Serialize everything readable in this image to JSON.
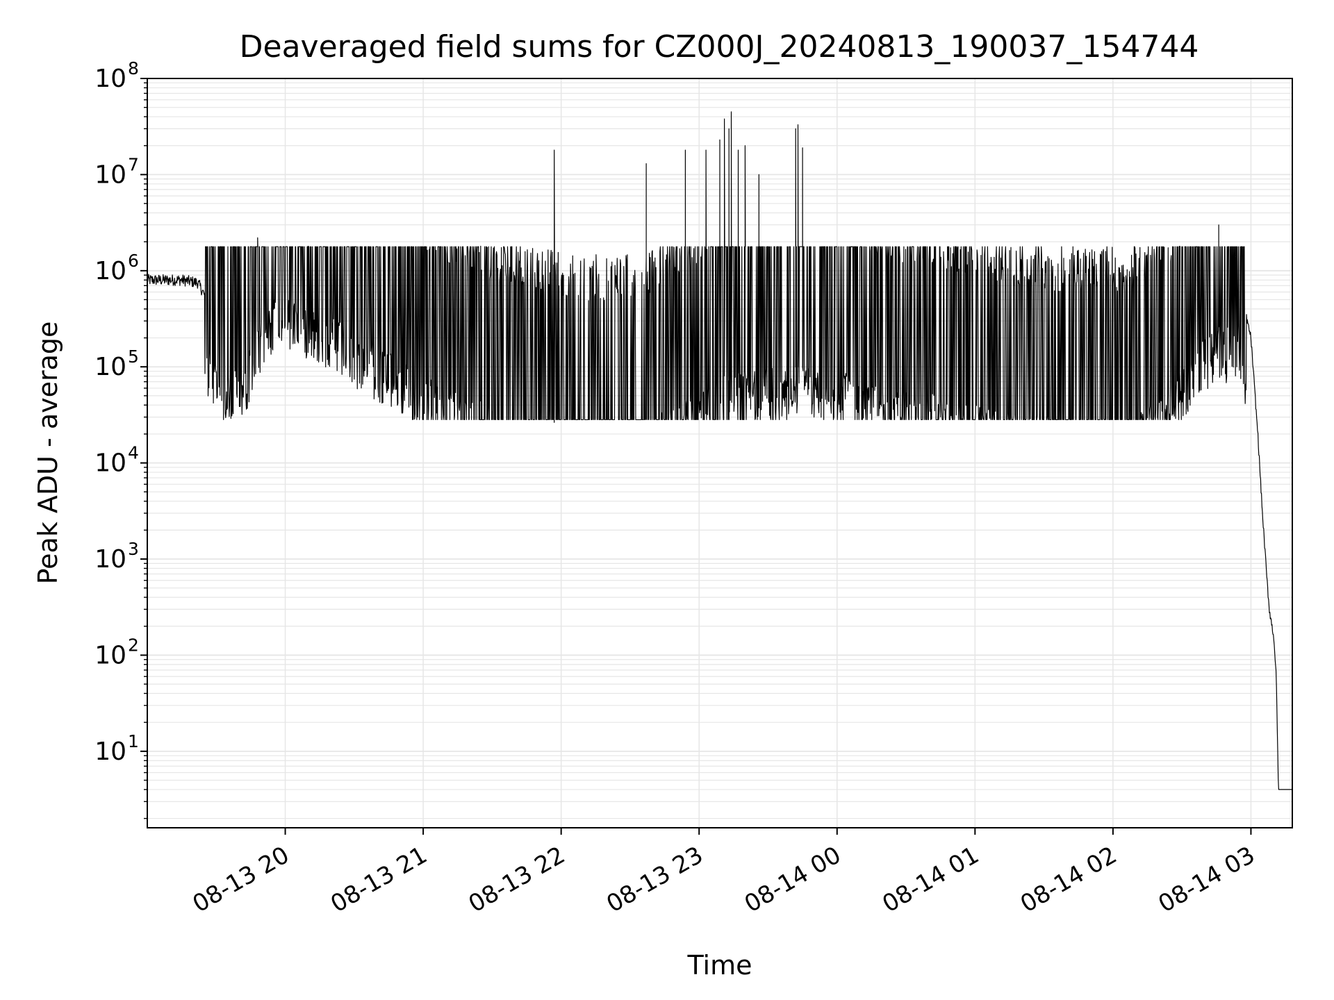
{
  "chart_data": {
    "type": "line",
    "title": "Deaveraged field sums for CZ000J_20240813_190037_154744",
    "xlabel": "Time",
    "ylabel": "Peak ADU - average",
    "yscale": "log",
    "ylim": [
      1.6,
      100000000
    ],
    "xlim": [
      "2024-08-13 19:00",
      "2024-08-14 03:18"
    ],
    "grid": true,
    "x_ticks": [
      "08-13 20",
      "08-13 21",
      "08-13 22",
      "08-13 23",
      "08-14 00",
      "08-14 01",
      "08-14 02",
      "08-14 03"
    ],
    "y_ticks": [
      {
        "base": "10",
        "exp": "1"
      },
      {
        "base": "10",
        "exp": "2"
      },
      {
        "base": "10",
        "exp": "3"
      },
      {
        "base": "10",
        "exp": "4"
      },
      {
        "base": "10",
        "exp": "5"
      },
      {
        "base": "10",
        "exp": "6"
      },
      {
        "base": "10",
        "exp": "7"
      },
      {
        "base": "10",
        "exp": "8"
      }
    ],
    "colors": {
      "line": "#000000",
      "grid": "#e6e6e6",
      "axes": "#000000"
    },
    "series": [
      {
        "x": [
          "2024-08-13 19:00",
          "2024-08-13 19:15",
          "2024-08-13 19:22",
          "2024-08-13 19:35",
          "2024-08-13 19:45",
          "2024-08-13 19:55",
          "2024-08-13 20:10",
          "2024-08-13 20:30",
          "2024-08-13 20:50",
          "2024-08-13 21:10",
          "2024-08-13 21:30",
          "2024-08-13 21:50",
          "2024-08-13 22:10",
          "2024-08-13 22:30",
          "2024-08-13 22:50",
          "2024-08-13 23:10",
          "2024-08-13 23:30",
          "2024-08-13 23:50",
          "2024-08-14 00:10",
          "2024-08-14 00:30",
          "2024-08-14 00:50",
          "2024-08-14 01:10",
          "2024-08-14 01:30",
          "2024-08-14 01:50",
          "2024-08-14 02:10",
          "2024-08-14 02:25",
          "2024-08-14 02:35",
          "2024-08-14 02:45",
          "2024-08-14 02:55",
          "2024-08-14 03:00",
          "2024-08-14 03:03",
          "2024-08-14 03:05",
          "2024-08-14 03:07",
          "2024-08-14 03:08",
          "2024-08-14 03:10",
          "2024-08-14 03:11",
          "2024-08-14 03:12",
          "2024-08-14 03:13",
          "2024-08-14 03:18"
        ],
        "values": [
          800000,
          800000,
          750000,
          200000,
          400000,
          1500000,
          1200000,
          600000,
          300000,
          150000,
          100000,
          70000,
          60000,
          60000,
          100000,
          200000,
          250000,
          250000,
          200000,
          150000,
          120000,
          90000,
          80000,
          70000,
          80000,
          150000,
          400000,
          650000,
          700000,
          200000,
          20000,
          3000,
          600,
          300,
          150,
          60,
          4,
          4,
          4
        ]
      }
    ],
    "spikes": [
      {
        "x": "2024-08-13 19:48",
        "y": 2200000
      },
      {
        "x": "2024-08-13 20:10",
        "y": 1800000
      },
      {
        "x": "2024-08-13 21:25",
        "y": 1800000
      },
      {
        "x": "2024-08-13 21:57",
        "y": 18000000
      },
      {
        "x": "2024-08-13 22:37",
        "y": 13000000
      },
      {
        "x": "2024-08-13 22:54",
        "y": 18000000
      },
      {
        "x": "2024-08-13 23:03",
        "y": 18000000
      },
      {
        "x": "2024-08-13 23:09",
        "y": 23000000
      },
      {
        "x": "2024-08-13 23:11",
        "y": 38000000
      },
      {
        "x": "2024-08-13 23:13",
        "y": 30000000
      },
      {
        "x": "2024-08-13 23:14",
        "y": 45000000
      },
      {
        "x": "2024-08-13 23:17",
        "y": 18000000
      },
      {
        "x": "2024-08-13 23:20",
        "y": 20000000
      },
      {
        "x": "2024-08-13 23:26",
        "y": 10000000
      },
      {
        "x": "2024-08-13 23:42",
        "y": 30000000
      },
      {
        "x": "2024-08-13 23:43",
        "y": 33000000
      },
      {
        "x": "2024-08-13 23:45",
        "y": 19000000
      },
      {
        "x": "2024-08-14 02:29",
        "y": 1800000
      },
      {
        "x": "2024-08-14 02:46",
        "y": 3000000
      }
    ]
  }
}
